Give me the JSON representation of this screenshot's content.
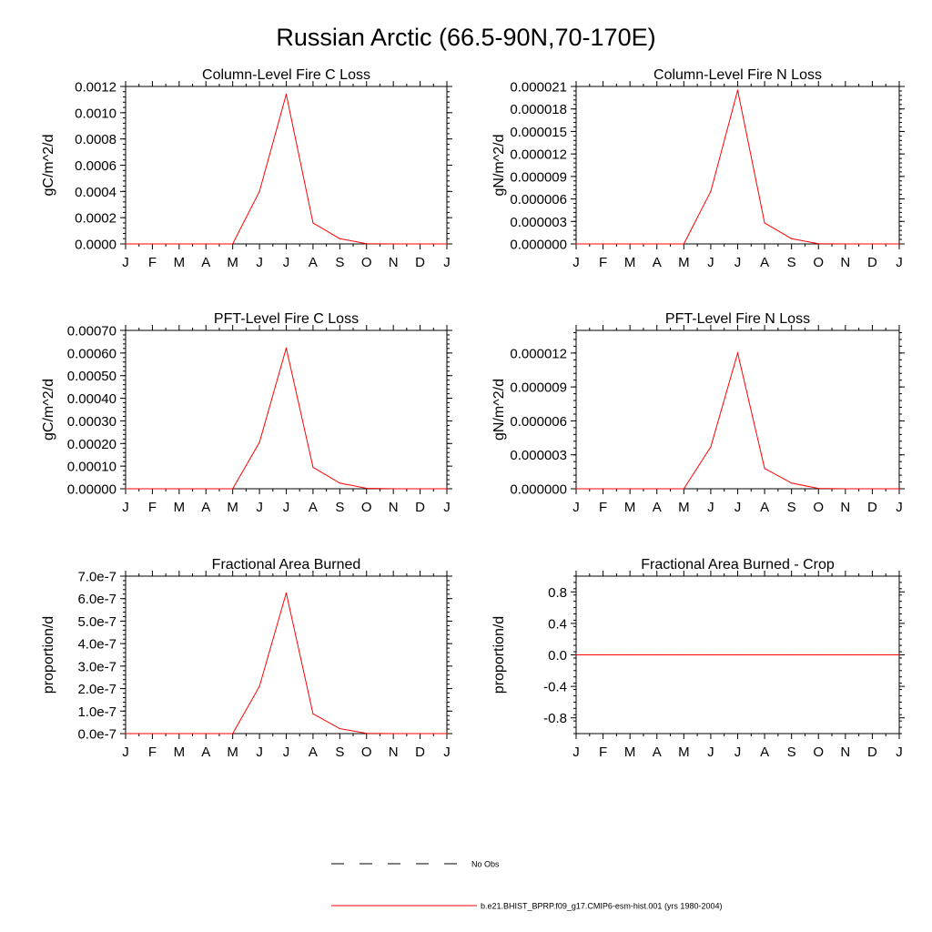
{
  "title": "Russian Arctic (66.5-90N,70-170E)",
  "colors": {
    "model": "#ff0000",
    "obs": "#000000",
    "axis": "#000000"
  },
  "legend": [
    {
      "label": "No Obs",
      "style": "dashed",
      "color": "#000000"
    },
    {
      "label": "b.e21.BHIST_BPRP.f09_g17.CMIP6-esm-hist.001 (yrs 1980-2004)",
      "style": "solid",
      "color": "#ff0000"
    }
  ],
  "chart_data": [
    {
      "type": "line",
      "title": "Column-Level Fire C Loss",
      "ylabel": "gC/m^2/d",
      "categories": [
        "J",
        "F",
        "M",
        "A",
        "M",
        "J",
        "J",
        "A",
        "S",
        "O",
        "N",
        "D",
        "J"
      ],
      "ylim": [
        0,
        0.0012
      ],
      "yticks": [
        0,
        0.0002,
        0.0004,
        0.0006,
        0.0008,
        0.001,
        0.0012
      ],
      "ytick_labels": [
        "0.0000",
        "0.0002",
        "0.0004",
        "0.0006",
        "0.0008",
        "0.0010",
        "0.0012"
      ],
      "series": [
        {
          "values": [
            0,
            0,
            0,
            0,
            0,
            0.0004,
            0.00114,
            0.00016,
            4e-05,
            2e-06,
            0,
            0,
            0
          ]
        }
      ]
    },
    {
      "type": "line",
      "title": "Column-Level Fire N Loss",
      "ylabel": "gN/m^2/d",
      "categories": [
        "J",
        "F",
        "M",
        "A",
        "M",
        "J",
        "J",
        "A",
        "S",
        "O",
        "N",
        "D",
        "J"
      ],
      "ylim": [
        0,
        2.1e-05
      ],
      "yticks": [
        0,
        3e-06,
        6e-06,
        9e-06,
        1.2e-05,
        1.5e-05,
        1.8e-05,
        2.1e-05
      ],
      "ytick_labels": [
        "0.000000",
        "0.000003",
        "0.000006",
        "0.000009",
        "0.000012",
        "0.000015",
        "0.000018",
        "0.000021"
      ],
      "series": [
        {
          "values": [
            0,
            0,
            0,
            0,
            0,
            7e-06,
            2.05e-05,
            2.8e-06,
            7e-07,
            3e-08,
            0,
            0,
            0
          ]
        }
      ]
    },
    {
      "type": "line",
      "title": "PFT-Level Fire C Loss",
      "ylabel": "gC/m^2/d",
      "categories": [
        "J",
        "F",
        "M",
        "A",
        "M",
        "J",
        "J",
        "A",
        "S",
        "O",
        "N",
        "D",
        "J"
      ],
      "ylim": [
        0,
        0.0007
      ],
      "yticks": [
        0,
        0.0001,
        0.0002,
        0.0003,
        0.0004,
        0.0005,
        0.0006,
        0.0007
      ],
      "ytick_labels": [
        "0.00000",
        "0.00010",
        "0.00020",
        "0.00030",
        "0.00040",
        "0.00050",
        "0.00060",
        "0.00070"
      ],
      "series": [
        {
          "values": [
            0,
            0,
            0,
            0,
            0,
            0.000205,
            0.000622,
            9.5e-05,
            2.5e-05,
            2e-06,
            0,
            0,
            0
          ]
        }
      ]
    },
    {
      "type": "line",
      "title": "PFT-Level Fire N Loss",
      "ylabel": "gN/m^2/d",
      "categories": [
        "J",
        "F",
        "M",
        "A",
        "M",
        "J",
        "J",
        "A",
        "S",
        "O",
        "N",
        "D",
        "J"
      ],
      "ylim": [
        0,
        1.4e-05
      ],
      "yticks": [
        0,
        3e-06,
        6e-06,
        9e-06,
        1.2e-05
      ],
      "ytick_labels": [
        "0.000000",
        "0.000003",
        "0.000006",
        "0.000009",
        "0.000012"
      ],
      "series": [
        {
          "values": [
            0,
            0,
            0,
            0,
            0,
            3.7e-06,
            1.2e-05,
            1.8e-06,
            5e-07,
            3e-08,
            0,
            0,
            0
          ]
        }
      ]
    },
    {
      "type": "line",
      "title": "Fractional Area Burned",
      "ylabel": "proportion/d",
      "categories": [
        "J",
        "F",
        "M",
        "A",
        "M",
        "J",
        "J",
        "A",
        "S",
        "O",
        "N",
        "D",
        "J"
      ],
      "ylim": [
        0,
        7e-07
      ],
      "yticks": [
        0,
        1e-07,
        2e-07,
        3e-07,
        4e-07,
        5e-07,
        6e-07,
        7e-07
      ],
      "ytick_labels": [
        "0.0e-7",
        "1.0e-7",
        "2.0e-7",
        "3.0e-7",
        "4.0e-7",
        "5.0e-7",
        "6.0e-7",
        "7.0e-7"
      ],
      "series": [
        {
          "values": [
            0,
            0,
            0,
            0,
            0,
            2.1e-07,
            6.25e-07,
            8.8e-08,
            2.2e-08,
            1e-09,
            0,
            0,
            0
          ]
        }
      ]
    },
    {
      "type": "line",
      "title": "Fractional Area Burned - Crop",
      "ylabel": "proportion/d",
      "categories": [
        "J",
        "F",
        "M",
        "A",
        "M",
        "J",
        "J",
        "A",
        "S",
        "O",
        "N",
        "D",
        "J"
      ],
      "ylim": [
        -1.0,
        1.0
      ],
      "yticks": [
        -0.8,
        -0.4,
        0.0,
        0.4,
        0.8
      ],
      "ytick_labels": [
        "-0.8",
        "-0.4",
        "0.0",
        "0.4",
        "0.8"
      ],
      "series": [
        {
          "values": [
            0,
            0,
            0,
            0,
            0,
            0,
            0,
            0,
            0,
            0,
            0,
            0,
            0
          ]
        }
      ]
    }
  ]
}
